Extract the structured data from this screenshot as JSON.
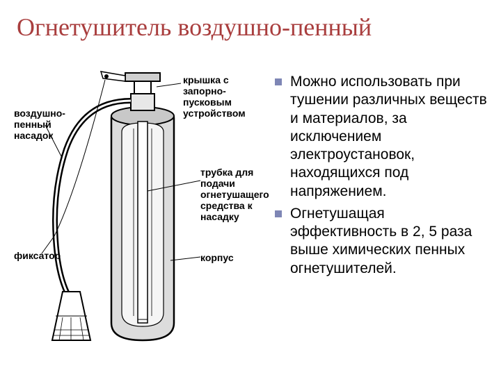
{
  "title": "Огнетушитель воздушно-пенный",
  "title_color": "#a93e3e",
  "diagram": {
    "labels": {
      "cap": "крышка с запорно-\nпусковым\nустройством",
      "nozzle": "воздушно-\nпенный\nнасадок",
      "tube": "трубка для\nподачи\nогнетушащего\nсредства к\nнасадку",
      "fixator": "фиксатор",
      "body": "корпус"
    },
    "stroke": "#000000",
    "fill_body": "#d9d9d9",
    "fill_light": "#f2f2f2",
    "fill_nozzle": "#ffffff"
  },
  "bullets": [
    "Можно использовать при тушении различных веществ и материалов, за исключением электроустановок, находящихся под напряжением.",
    "Огнетушащая эффективность в 2, 5 раза выше химических пенных огнетушителей."
  ],
  "bullet_marker_color": "#7e86b5",
  "text_color": "#000000",
  "background": "#ffffff",
  "title_fontsize": 36,
  "bullet_fontsize": 21,
  "label_fontsize": 14
}
